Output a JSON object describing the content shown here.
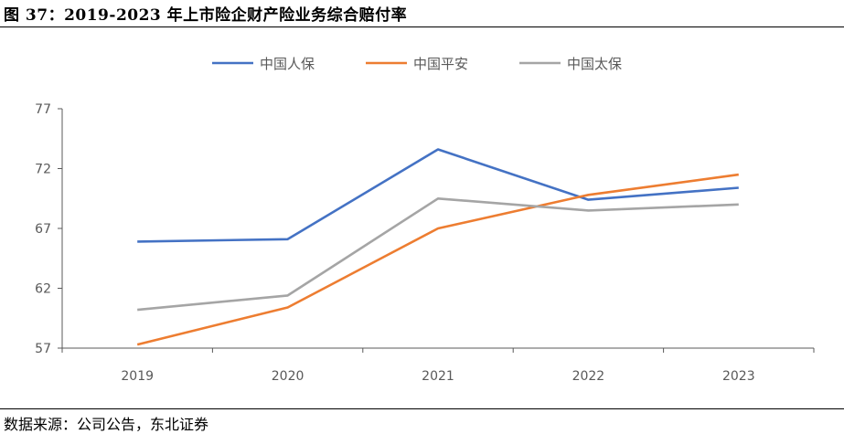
{
  "header": {
    "title": "图 37：2019-2023 年上市险企财产险业务综合赔付率"
  },
  "footer": {
    "source": "数据来源：公司公告，东北证券"
  },
  "chart_data": {
    "type": "line",
    "title": "",
    "xlabel": "",
    "ylabel": "",
    "categories": [
      "2019",
      "2020",
      "2021",
      "2022",
      "2023"
    ],
    "ylim": [
      57,
      77
    ],
    "yticks": [
      57,
      62,
      67,
      72,
      77
    ],
    "grid": false,
    "legend": "top-center",
    "series": [
      {
        "name": "中国人保",
        "color": "#4472C4",
        "values": [
          65.9,
          66.1,
          73.6,
          69.4,
          70.4
        ]
      },
      {
        "name": "中国平安",
        "color": "#ED7D31",
        "values": [
          57.3,
          60.4,
          67.0,
          69.8,
          71.5
        ]
      },
      {
        "name": "中国太保",
        "color": "#A5A5A5",
        "values": [
          60.2,
          61.4,
          69.5,
          68.5,
          69.0
        ]
      }
    ]
  }
}
